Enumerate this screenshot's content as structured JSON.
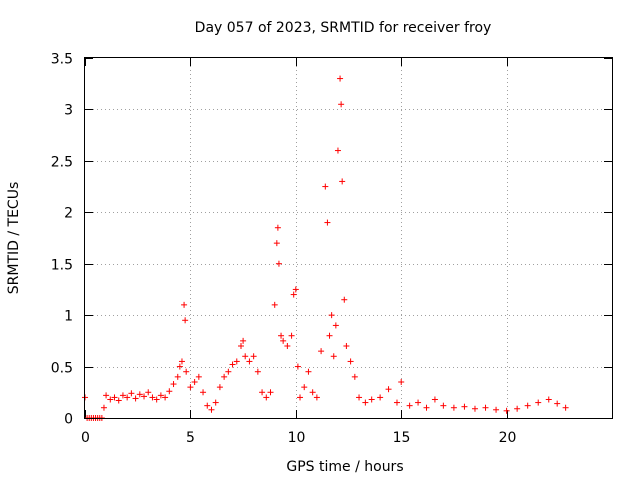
{
  "chart_data": {
    "type": "scatter",
    "title": "Day 057 of 2023, SRMTID for receiver froy",
    "xlabel": "GPS time / hours",
    "ylabel": "SRMTID / TECUs",
    "xlim": [
      0,
      25
    ],
    "ylim": [
      0,
      3.5
    ],
    "x_ticks": [
      0,
      5,
      10,
      15,
      20
    ],
    "x_tick_labels": [
      "0",
      "5",
      "10",
      "15",
      "20"
    ],
    "y_ticks": [
      0,
      0.5,
      1,
      1.5,
      2,
      2.5,
      3,
      3.5
    ],
    "y_tick_labels": [
      "0",
      "0.5",
      "1",
      "1.5",
      "2",
      "2.5",
      "3",
      "3.5"
    ],
    "grid": true,
    "marker": "+",
    "color": "#ff0000",
    "series": [
      {
        "name": "SRMTID",
        "x": [
          0.0,
          0.1,
          0.2,
          0.3,
          0.4,
          0.5,
          0.6,
          0.7,
          0.8,
          0.9,
          1.0,
          1.2,
          1.4,
          1.6,
          1.8,
          2.0,
          2.2,
          2.4,
          2.6,
          2.8,
          3.0,
          3.2,
          3.4,
          3.6,
          3.8,
          4.0,
          4.2,
          4.4,
          4.5,
          4.6,
          4.7,
          4.75,
          4.8,
          5.0,
          5.2,
          5.4,
          5.6,
          5.8,
          6.0,
          6.2,
          6.4,
          6.6,
          6.8,
          7.0,
          7.2,
          7.4,
          7.5,
          7.6,
          7.8,
          8.0,
          8.2,
          8.4,
          8.6,
          8.8,
          9.0,
          9.1,
          9.15,
          9.2,
          9.3,
          9.4,
          9.6,
          9.8,
          9.9,
          10.0,
          10.1,
          10.2,
          10.4,
          10.6,
          10.8,
          11.0,
          11.2,
          11.4,
          11.5,
          11.6,
          11.7,
          11.8,
          11.9,
          12.0,
          12.1,
          12.15,
          12.2,
          12.3,
          12.4,
          12.6,
          12.8,
          13.0,
          13.3,
          13.6,
          14.0,
          14.4,
          14.8,
          15.0,
          15.4,
          15.8,
          16.2,
          16.6,
          17.0,
          17.5,
          18.0,
          18.5,
          19.0,
          19.5,
          20.0,
          20.5,
          21.0,
          21.5,
          22.0,
          22.4,
          22.8
        ],
        "y": [
          0.2,
          0.0,
          0.0,
          0.0,
          0.0,
          0.0,
          0.0,
          0.0,
          0.0,
          0.1,
          0.22,
          0.18,
          0.2,
          0.17,
          0.22,
          0.2,
          0.24,
          0.19,
          0.23,
          0.21,
          0.25,
          0.2,
          0.18,
          0.22,
          0.2,
          0.26,
          0.33,
          0.4,
          0.5,
          0.55,
          1.1,
          0.95,
          0.45,
          0.3,
          0.35,
          0.4,
          0.25,
          0.12,
          0.08,
          0.15,
          0.3,
          0.4,
          0.45,
          0.52,
          0.55,
          0.7,
          0.75,
          0.6,
          0.55,
          0.6,
          0.45,
          0.25,
          0.2,
          0.25,
          1.1,
          1.7,
          1.85,
          1.5,
          0.8,
          0.75,
          0.7,
          0.8,
          1.2,
          1.25,
          0.5,
          0.2,
          0.3,
          0.45,
          0.25,
          0.2,
          0.65,
          2.25,
          1.9,
          0.8,
          1.0,
          0.6,
          0.9,
          2.6,
          3.3,
          3.05,
          2.3,
          1.15,
          0.7,
          0.55,
          0.4,
          0.2,
          0.15,
          0.18,
          0.2,
          0.28,
          0.15,
          0.35,
          0.12,
          0.15,
          0.1,
          0.18,
          0.12,
          0.1,
          0.11,
          0.09,
          0.1,
          0.08,
          0.07,
          0.09,
          0.12,
          0.15,
          0.18,
          0.14,
          0.1
        ]
      }
    ]
  }
}
